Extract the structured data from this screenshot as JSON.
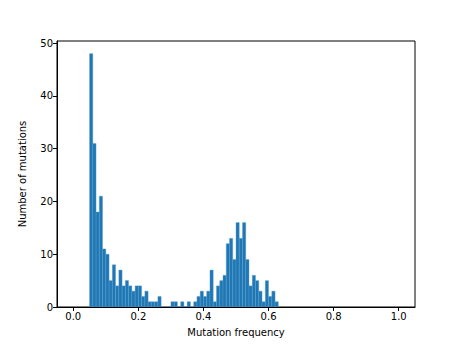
{
  "chart_data": {
    "type": "histogram",
    "x_label": "Mutation frequency",
    "y_label": "Number of mutations",
    "bins": [
      0.05,
      0.06,
      0.07,
      0.08,
      0.09,
      0.1,
      0.11,
      0.12,
      0.13,
      0.14,
      0.15,
      0.16,
      0.17,
      0.18,
      0.19,
      0.2,
      0.21,
      0.22,
      0.23,
      0.24,
      0.25,
      0.26,
      0.27,
      0.28,
      0.29,
      0.3,
      0.31,
      0.32,
      0.33,
      0.34,
      0.35,
      0.36,
      0.37,
      0.38,
      0.39,
      0.4,
      0.41,
      0.42,
      0.43,
      0.44,
      0.45,
      0.46,
      0.47,
      0.48,
      0.49,
      0.5,
      0.51,
      0.52,
      0.53,
      0.54,
      0.55,
      0.56,
      0.57,
      0.58,
      0.59,
      0.6,
      0.61,
      0.62,
      0.63
    ],
    "values": [
      48,
      31,
      18,
      21,
      11,
      10,
      5,
      8,
      4,
      7,
      4,
      5,
      4,
      3,
      4,
      4,
      2,
      3,
      1,
      1,
      1,
      2,
      0,
      0,
      0,
      1,
      1,
      0,
      1,
      0,
      1,
      0,
      1,
      2,
      3,
      2,
      3,
      7,
      1,
      4,
      5,
      6,
      12,
      13,
      9,
      16,
      13,
      16,
      9,
      4,
      6,
      5,
      3,
      1,
      5,
      2,
      3,
      1
    ],
    "color": "#1f77b4",
    "xlim": [
      -0.05,
      1.05
    ],
    "xticks": [
      {
        "value": 0,
        "label": "0.0"
      },
      0.2,
      0.4,
      0.6,
      0.8,
      {
        "value": 1,
        "label": "1.0"
      }
    ],
    "ylim": [
      0,
      50.4
    ],
    "yticks": [
      0,
      10,
      20,
      30,
      40,
      50
    ],
    "grid": false
  }
}
